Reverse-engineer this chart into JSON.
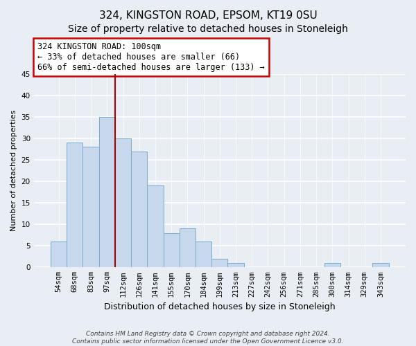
{
  "title": "324, KINGSTON ROAD, EPSOM, KT19 0SU",
  "subtitle": "Size of property relative to detached houses in Stoneleigh",
  "xlabel": "Distribution of detached houses by size in Stoneleigh",
  "ylabel": "Number of detached properties",
  "bar_labels": [
    "54sqm",
    "68sqm",
    "83sqm",
    "97sqm",
    "112sqm",
    "126sqm",
    "141sqm",
    "155sqm",
    "170sqm",
    "184sqm",
    "199sqm",
    "213sqm",
    "227sqm",
    "242sqm",
    "256sqm",
    "271sqm",
    "285sqm",
    "300sqm",
    "314sqm",
    "329sqm",
    "343sqm"
  ],
  "bar_values": [
    6,
    29,
    28,
    35,
    30,
    27,
    19,
    8,
    9,
    6,
    2,
    1,
    0,
    0,
    0,
    0,
    0,
    1,
    0,
    0,
    1
  ],
  "bar_color": "#c8d8ec",
  "bar_edge_color": "#7aaaca",
  "ylim": [
    0,
    45
  ],
  "yticks": [
    0,
    5,
    10,
    15,
    20,
    25,
    30,
    35,
    40,
    45
  ],
  "property_line_bar_index": 4,
  "annotation_title": "324 KINGSTON ROAD: 100sqm",
  "annotation_line1": "← 33% of detached houses are smaller (66)",
  "annotation_line2": "66% of semi-detached houses are larger (133) →",
  "annotation_box_color": "#ffffff",
  "annotation_box_edge": "#cc0000",
  "property_line_color": "#aa0000",
  "footer1": "Contains HM Land Registry data © Crown copyright and database right 2024.",
  "footer2": "Contains public sector information licensed under the Open Government Licence v3.0.",
  "background_color": "#e8eef4",
  "grid_color": "#ffffff",
  "title_fontsize": 11,
  "subtitle_fontsize": 10,
  "xlabel_fontsize": 9,
  "ylabel_fontsize": 8,
  "tick_fontsize": 7.5,
  "annotation_fontsize": 8.5,
  "footer_fontsize": 6.5
}
